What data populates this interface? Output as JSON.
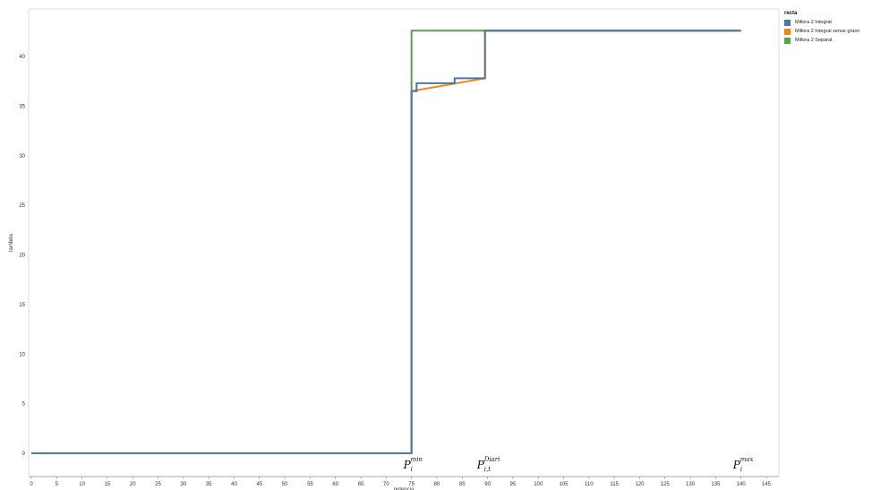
{
  "chart_data": {
    "type": "line",
    "title": "",
    "xlabel": "potencia",
    "ylabel": "lambda",
    "xlim": [
      0,
      147
    ],
    "ylim": [
      -1.3,
      43.5
    ],
    "x_ticks": [
      0,
      5,
      10,
      15,
      20,
      25,
      30,
      35,
      40,
      45,
      50,
      55,
      60,
      65,
      70,
      75,
      80,
      85,
      90,
      95,
      100,
      105,
      110,
      115,
      120,
      125,
      130,
      135,
      140,
      145
    ],
    "y_ticks": [
      0,
      5,
      10,
      15,
      20,
      25,
      30,
      35,
      40
    ],
    "legend": {
      "title": "recta",
      "placement": "top-right",
      "entries": [
        "Millora 2 Integrat",
        "Millora 2 Integral sense graon",
        "Millora 2 Separat"
      ]
    },
    "grid": false,
    "series": [
      {
        "name": "Millora 2 Integral sense graon",
        "color": "#f58518",
        "points": [
          [
            0,
            0
          ],
          [
            75,
            0
          ],
          [
            75,
            36.5
          ],
          [
            89.5,
            37.8
          ],
          [
            89.5,
            42.6
          ],
          [
            140,
            42.6
          ]
        ]
      },
      {
        "name": "Millora 2 Separat",
        "color": "#54a24b",
        "points": [
          [
            0,
            0
          ],
          [
            75,
            0
          ],
          [
            75,
            36.5
          ],
          [
            75,
            42.6
          ],
          [
            140,
            42.6
          ]
        ]
      },
      {
        "name": "Millora 2 Integrat",
        "color": "#4c78a8",
        "points": [
          [
            0,
            0
          ],
          [
            75,
            0
          ],
          [
            75,
            36.5
          ],
          [
            76,
            36.5
          ],
          [
            76,
            37.3
          ],
          [
            83.5,
            37.3
          ],
          [
            83.5,
            37.8
          ],
          [
            89.5,
            37.8
          ],
          [
            89.5,
            42.6
          ],
          [
            140,
            42.6
          ]
        ]
      }
    ],
    "annotations": [
      {
        "base": "P",
        "sub": "i",
        "sup": "min",
        "x": 75
      },
      {
        "base": "P",
        "sub": "i,t",
        "sup": "Diari",
        "x": 89.5
      },
      {
        "base": "P",
        "sub": "i",
        "sup": "max",
        "x": 140
      }
    ]
  }
}
